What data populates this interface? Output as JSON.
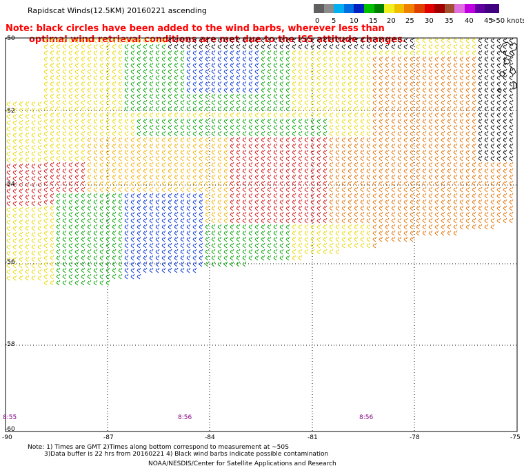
{
  "title": "Rapidscat Winds(12.5KM) 20160221 ascending",
  "note_line1": "Note: black circles have been added to the wind barbs, wherever less than",
  "note_line2": "optimal wind retrieval conditions are met due to the ISS attitude changes.",
  "legend": {
    "colors": [
      "#606060",
      "#8c8c8c",
      "#00b0f0",
      "#0070e0",
      "#0020c0",
      "#00c000",
      "#008000",
      "#f0f020",
      "#f0c000",
      "#f08000",
      "#e04000",
      "#e00000",
      "#a00000",
      "#a05030",
      "#e070e0",
      "#c000e0",
      "#6000a0",
      "#400080"
    ],
    "labels": [
      "0",
      "5",
      "10",
      "15",
      "20",
      "25",
      "30",
      "35",
      "40",
      "45",
      ">50 knots"
    ]
  },
  "lat_labels": [
    "-50",
    "-52",
    "-54",
    "-56",
    "-58",
    "-60"
  ],
  "lon_labels": [
    "-90",
    "-87",
    "-84",
    "-81",
    "-78",
    "-75"
  ],
  "time_labels": [
    "8:55",
    "8:56",
    "8:56"
  ],
  "footnote_line1": "Note: 1) Times are GMT 2)Times along bottom correspond to measurement at ~50S",
  "footnote_line2": "3)Data buffer is 22 hrs from 20160221 4) Black wind barbs indicate possible contamination",
  "credit": "NOAA/NESDIS/Center for Satellite Applications and Research",
  "wind_colors": {
    "black": "#000000",
    "green": "#00a000",
    "darkgreen": "#006000",
    "blue": "#0030d0",
    "lightblue": "#10a0f0",
    "yellow": "#e8d800",
    "gold": "#f0b000",
    "orange": "#e07000",
    "red": "#d01010",
    "brown": "#904020"
  }
}
